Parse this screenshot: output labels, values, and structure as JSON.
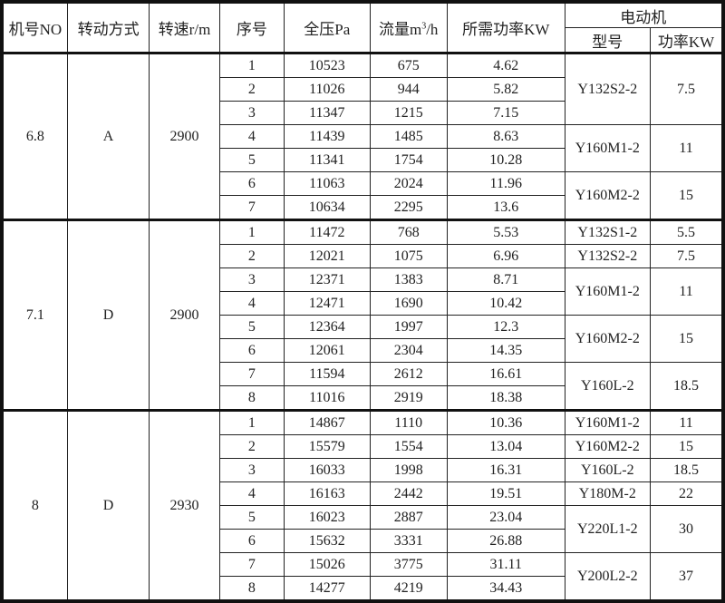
{
  "headers": {
    "machine_no": "机号NO",
    "drive_mode": "转动方式",
    "speed": "转速r/m",
    "seq": "序号",
    "total_pressure": "全压Pa",
    "flow_prefix": "流量m",
    "flow_sup": "3",
    "flow_suffix": "/h",
    "required_power": "所需功率KW",
    "motor": "电动机",
    "motor_model": "型号",
    "motor_power": "功率KW"
  },
  "groups": [
    {
      "machine_no": "6.8",
      "drive_mode": "A",
      "speed": "2900",
      "rows": [
        {
          "seq": "1",
          "pressure": "10523",
          "flow": "675",
          "power": "4.62"
        },
        {
          "seq": "2",
          "pressure": "11026",
          "flow": "944",
          "power": "5.82"
        },
        {
          "seq": "3",
          "pressure": "11347",
          "flow": "1215",
          "power": "7.15"
        },
        {
          "seq": "4",
          "pressure": "11439",
          "flow": "1485",
          "power": "8.63"
        },
        {
          "seq": "5",
          "pressure": "11341",
          "flow": "1754",
          "power": "10.28"
        },
        {
          "seq": "6",
          "pressure": "11063",
          "flow": "2024",
          "power": "11.96"
        },
        {
          "seq": "7",
          "pressure": "10634",
          "flow": "2295",
          "power": "13.6"
        }
      ],
      "motors": [
        {
          "model": "Y132S2-2",
          "power": "7.5",
          "span": 3
        },
        {
          "model": "Y160M1-2",
          "power": "11",
          "span": 2
        },
        {
          "model": "Y160M2-2",
          "power": "15",
          "span": 2
        }
      ]
    },
    {
      "machine_no": "7.1",
      "drive_mode": "D",
      "speed": "2900",
      "rows": [
        {
          "seq": "1",
          "pressure": "11472",
          "flow": "768",
          "power": "5.53"
        },
        {
          "seq": "2",
          "pressure": "12021",
          "flow": "1075",
          "power": "6.96"
        },
        {
          "seq": "3",
          "pressure": "12371",
          "flow": "1383",
          "power": "8.71"
        },
        {
          "seq": "4",
          "pressure": "12471",
          "flow": "1690",
          "power": "10.42"
        },
        {
          "seq": "5",
          "pressure": "12364",
          "flow": "1997",
          "power": "12.3"
        },
        {
          "seq": "6",
          "pressure": "12061",
          "flow": "2304",
          "power": "14.35"
        },
        {
          "seq": "7",
          "pressure": "11594",
          "flow": "2612",
          "power": "16.61"
        },
        {
          "seq": "8",
          "pressure": "11016",
          "flow": "2919",
          "power": "18.38"
        }
      ],
      "motors": [
        {
          "model": "Y132S1-2",
          "power": "5.5",
          "span": 1
        },
        {
          "model": "Y132S2-2",
          "power": "7.5",
          "span": 1
        },
        {
          "model": "Y160M1-2",
          "power": "11",
          "span": 2
        },
        {
          "model": "Y160M2-2",
          "power": "15",
          "span": 2
        },
        {
          "model": "Y160L-2",
          "power": "18.5",
          "span": 2
        }
      ]
    },
    {
      "machine_no": "8",
      "drive_mode": "D",
      "speed": "2930",
      "rows": [
        {
          "seq": "1",
          "pressure": "14867",
          "flow": "1110",
          "power": "10.36"
        },
        {
          "seq": "2",
          "pressure": "15579",
          "flow": "1554",
          "power": "13.04"
        },
        {
          "seq": "3",
          "pressure": "16033",
          "flow": "1998",
          "power": "16.31"
        },
        {
          "seq": "4",
          "pressure": "16163",
          "flow": "2442",
          "power": "19.51"
        },
        {
          "seq": "5",
          "pressure": "16023",
          "flow": "2887",
          "power": "23.04"
        },
        {
          "seq": "6",
          "pressure": "15632",
          "flow": "3331",
          "power": "26.88"
        },
        {
          "seq": "7",
          "pressure": "15026",
          "flow": "3775",
          "power": "31.11"
        },
        {
          "seq": "8",
          "pressure": "14277",
          "flow": "4219",
          "power": "34.43"
        }
      ],
      "motors": [
        {
          "model": "Y160M1-2",
          "power": "11",
          "span": 1
        },
        {
          "model": "Y160M2-2",
          "power": "15",
          "span": 1
        },
        {
          "model": "Y160L-2",
          "power": "18.5",
          "span": 1
        },
        {
          "model": "Y180M-2",
          "power": "22",
          "span": 1
        },
        {
          "model": "Y220L1-2",
          "power": "30",
          "span": 2
        },
        {
          "model": "Y200L2-2",
          "power": "37",
          "span": 2
        }
      ]
    }
  ]
}
